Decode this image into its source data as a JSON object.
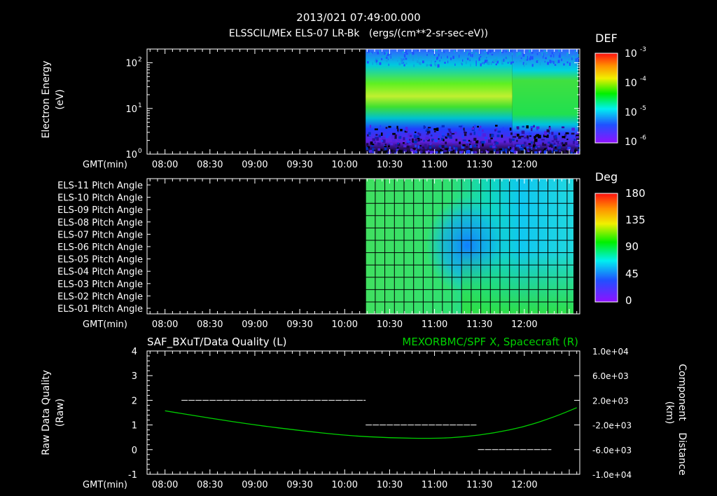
{
  "header": {
    "timestamp": "2013/021 07:49:00.000",
    "subtitle": "ELSSCIL/MEx ELS-07 LR-Bk   (ergs/(cm**2-sr-sec-eV))"
  },
  "time_axis": {
    "label": "GMT(min)",
    "ticks": [
      "08:00",
      "08:30",
      "09:00",
      "09:30",
      "10:00",
      "10:30",
      "11:00",
      "11:30",
      "12:00"
    ]
  },
  "chart_data": [
    {
      "type": "heatmap",
      "id": "energy-spectrogram",
      "ylabel_line1": "Electron Energy",
      "ylabel_line2": "(eV)",
      "ylim": [
        1,
        200
      ],
      "yscale": "log",
      "ytick_values": [
        1,
        10,
        100
      ],
      "yticks": [
        "10",
        "10",
        "10"
      ],
      "ytick_exps": [
        "0",
        "1",
        "2"
      ],
      "data_start_min": 134.0,
      "colorbar": {
        "title": "DEF",
        "labels": [
          "10",
          "10",
          "10",
          "10"
        ],
        "exps": [
          "-3",
          "-4",
          "-5",
          "-6"
        ]
      }
    },
    {
      "type": "heatmap",
      "id": "pitch-angle",
      "rows": [
        "ELS-11 Pitch Angle",
        "ELS-10 Pitch Angle",
        "ELS-09 Pitch Angle",
        "ELS-08 Pitch Angle",
        "ELS-07 Pitch Angle",
        "ELS-06 Pitch Angle",
        "ELS-05 Pitch Angle",
        "ELS-04 Pitch Angle",
        "ELS-03 Pitch Angle",
        "ELS-02 Pitch Angle",
        "ELS-01 Pitch Angle"
      ],
      "data_start_min": 134.0,
      "colorbar": {
        "title": "Deg",
        "labels": [
          "180",
          "135",
          "90",
          "45",
          "0"
        ]
      }
    },
    {
      "type": "line",
      "id": "quality-distance",
      "left_title": "SAF_BXuT/Data Quality (L)",
      "right_title": "MEXORBMC/SPF X, Spacecraft (R)",
      "ylabel_line1": "Raw Data Quality",
      "ylabel_line2": "(Raw)",
      "ylim": [
        -1,
        4
      ],
      "yticks": [
        "-1",
        "0",
        "1",
        "2",
        "3",
        "4"
      ],
      "y2label_line1": "Component",
      "y2label_line2": "Distance",
      "y2label_line3": "(km)",
      "y2lim": [
        -10000,
        10000
      ],
      "y2ticks": [
        "1.0e+04",
        "6.0e+03",
        "2.0e+03",
        "-2.0e+03",
        "-6.0e+03",
        "-1.0e+04"
      ],
      "quality_segments": [
        {
          "x0": 11,
          "x1": 134,
          "y": 2
        },
        {
          "x0": 134,
          "x1": 208,
          "y": 1
        },
        {
          "x0": 209,
          "x1": 258,
          "y": 0
        }
      ],
      "distance_series": {
        "name": "MEXORBMC/SPF X, Spacecraft (R)",
        "color": "#00d000",
        "x": [
          0,
          30,
          60,
          90,
          120,
          150,
          180,
          200,
          220,
          240,
          260,
          275
        ],
        "y": [
          300,
          -900,
          -2000,
          -2900,
          -3700,
          -4100,
          -4200,
          -3950,
          -3300,
          -2300,
          -700,
          800
        ]
      }
    }
  ],
  "time_range_min": [
    -12,
    277
  ]
}
